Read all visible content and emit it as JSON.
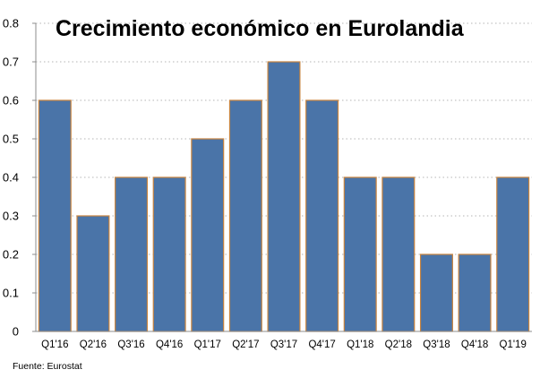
{
  "chart_data": {
    "type": "bar",
    "title": "Crecimiento económico en Eurolandia",
    "xlabel": "",
    "ylabel": "",
    "categories": [
      "Q1'16",
      "Q2'16",
      "Q3'16",
      "Q4'16",
      "Q1'17",
      "Q2'17",
      "Q3'17",
      "Q4'17",
      "Q1'18",
      "Q2'18",
      "Q3'18",
      "Q4'18",
      "Q1'19"
    ],
    "values": [
      0.6,
      0.3,
      0.4,
      0.4,
      0.5,
      0.6,
      0.7,
      0.6,
      0.4,
      0.4,
      0.2,
      0.2,
      0.4
    ],
    "ylim": [
      0,
      0.8
    ],
    "yticks": [
      "0",
      "0.1",
      "0.2",
      "0.3",
      "0.4",
      "0.5",
      "0.6",
      "0.7",
      "0.8"
    ],
    "grid": true,
    "source": "Fuente: Eurostat",
    "colors": {
      "bar_fill": "#4a74a8",
      "bar_edge": "#c8843f",
      "grid": "#b5b5b5",
      "axis": "#8c8c8c"
    }
  }
}
